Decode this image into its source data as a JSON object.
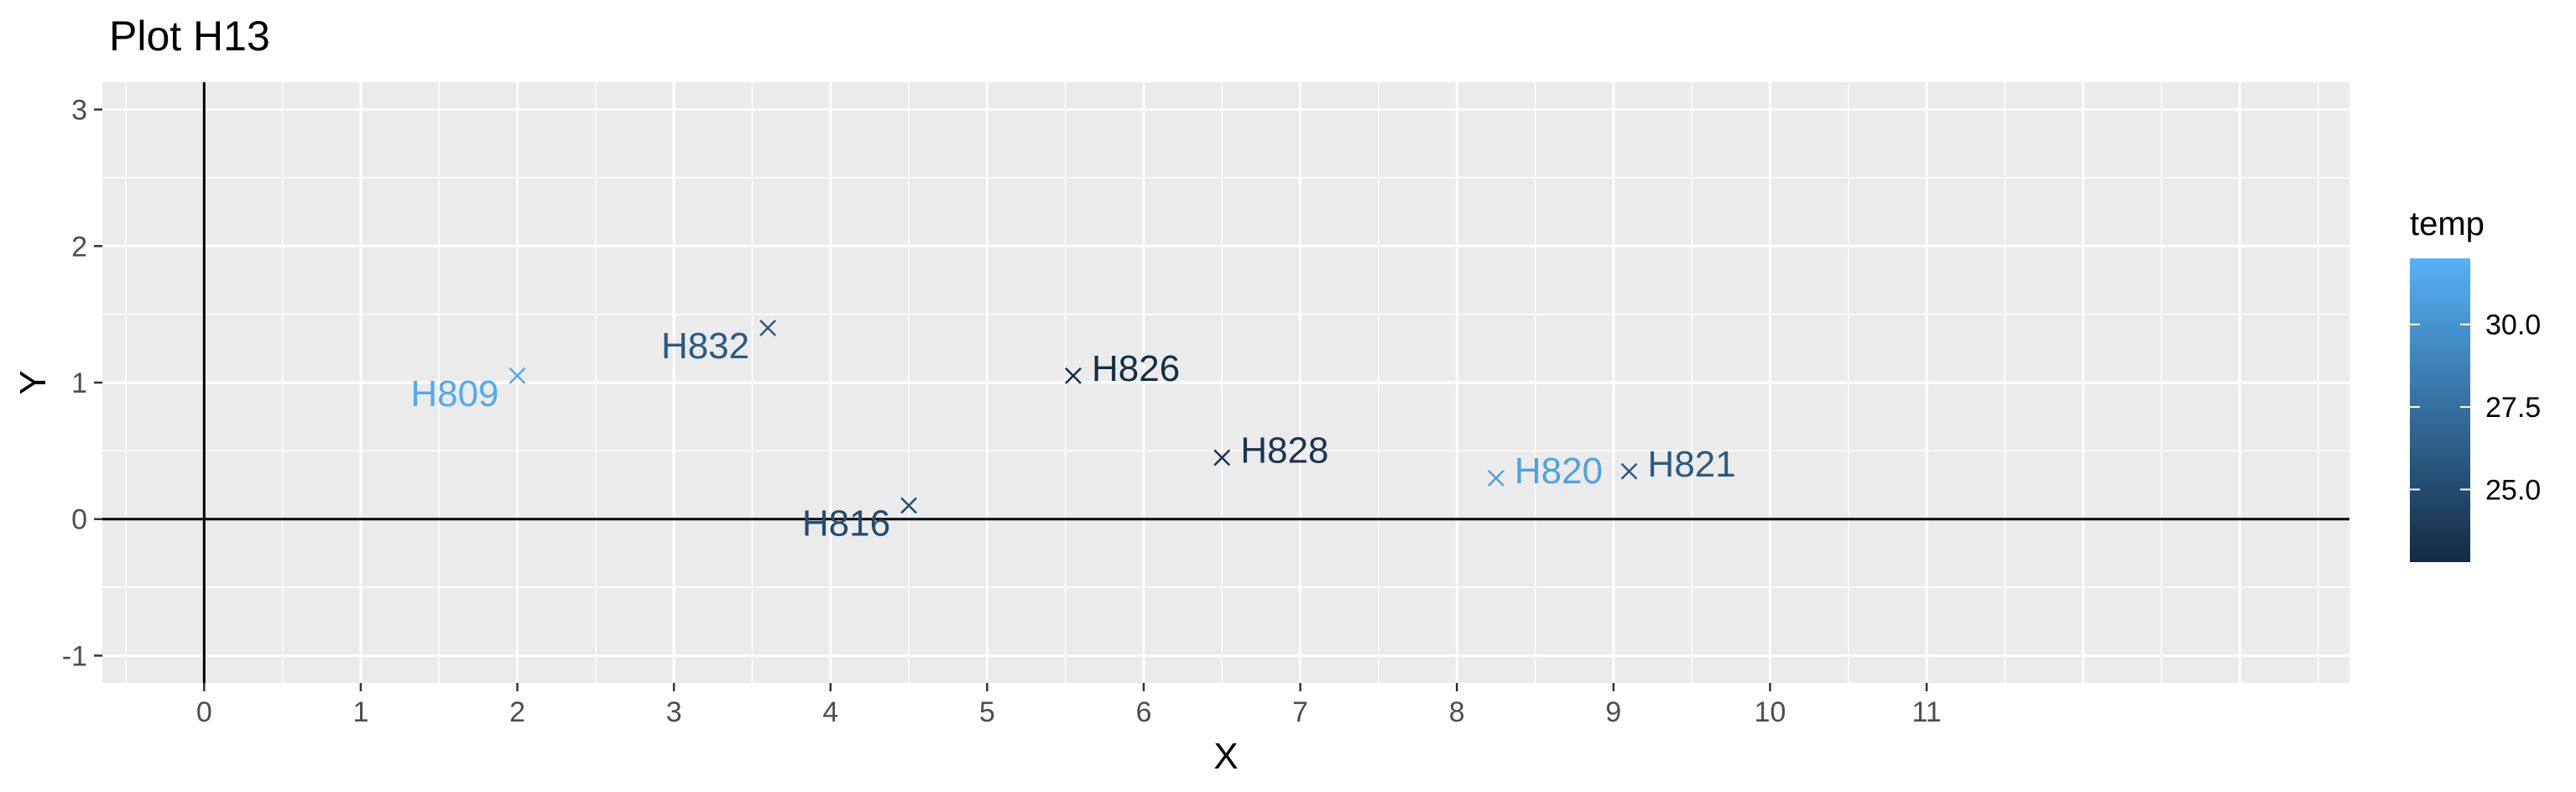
{
  "chart_data": {
    "type": "scatter",
    "title": "Plot H13",
    "xlabel": "X",
    "ylabel": "Y",
    "xlim": [
      -0.65,
      13.7
    ],
    "ylim": [
      -1.2,
      3.2
    ],
    "x_ticks": [
      0,
      1,
      2,
      3,
      4,
      5,
      6,
      7,
      8,
      9,
      10,
      11
    ],
    "y_ticks": [
      -1,
      0,
      1,
      2,
      3
    ],
    "grid": true,
    "reference_lines": {
      "x": 0,
      "y": 0
    },
    "marker": "x",
    "points": [
      {
        "label": "H809",
        "x": 2.0,
        "y": 1.05,
        "temp": 31.5
      },
      {
        "label": "H832",
        "x": 3.6,
        "y": 1.4,
        "temp": 26.0
      },
      {
        "label": "H816",
        "x": 4.5,
        "y": 0.1,
        "temp": 25.0
      },
      {
        "label": "H826",
        "x": 5.55,
        "y": 1.05,
        "temp": 23.0
      },
      {
        "label": "H828",
        "x": 6.5,
        "y": 0.45,
        "temp": 23.5
      },
      {
        "label": "H820",
        "x": 8.25,
        "y": 0.3,
        "temp": 31.0
      },
      {
        "label": "H821",
        "x": 9.1,
        "y": 0.35,
        "temp": 26.0
      }
    ],
    "legend": {
      "title": "temp",
      "placement": "right",
      "min": 22.8,
      "max": 32.0,
      "ticks": [
        "25.0",
        "27.5",
        "30.0"
      ],
      "color_low": "#132b43",
      "color_high": "#56b1f7"
    },
    "colors": {
      "panel": "#ebebeb",
      "grid_major": "#ffffff",
      "reference_line": "#000000"
    }
  }
}
